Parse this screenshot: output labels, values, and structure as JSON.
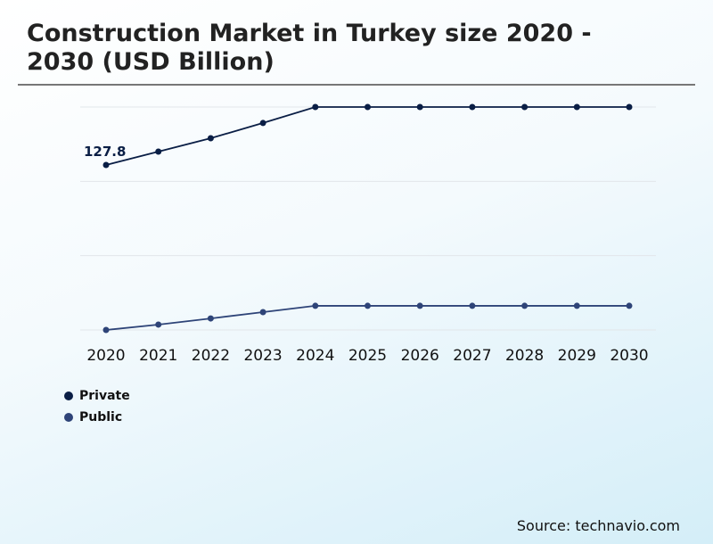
{
  "chart_data": {
    "type": "line",
    "title": "Construction Market in Turkey size 2020 - 2030 (USD Billion)",
    "xlabel": "",
    "ylabel": "",
    "x": [
      "2020",
      "2021",
      "2022",
      "2023",
      "2024",
      "2025",
      "2026",
      "2027",
      "2028",
      "2029",
      "2030"
    ],
    "series": [
      {
        "name": "Private",
        "color": "#0a1e45",
        "values": [
          127.8,
          135,
          142.2,
          150.4,
          159,
          159,
          159,
          159,
          159,
          159,
          159
        ]
      },
      {
        "name": "Public",
        "color": "#2e4478",
        "values": [
          39,
          41.9,
          45.2,
          48.6,
          52,
          52,
          52,
          52,
          52,
          52,
          52
        ]
      }
    ],
    "annotations": [
      {
        "series": "Private",
        "x": "2020",
        "text": "127.8"
      }
    ],
    "ylim": [
      39,
      159
    ],
    "grid": true,
    "legend": "bottom-left"
  },
  "source": "Source: technavio.com"
}
